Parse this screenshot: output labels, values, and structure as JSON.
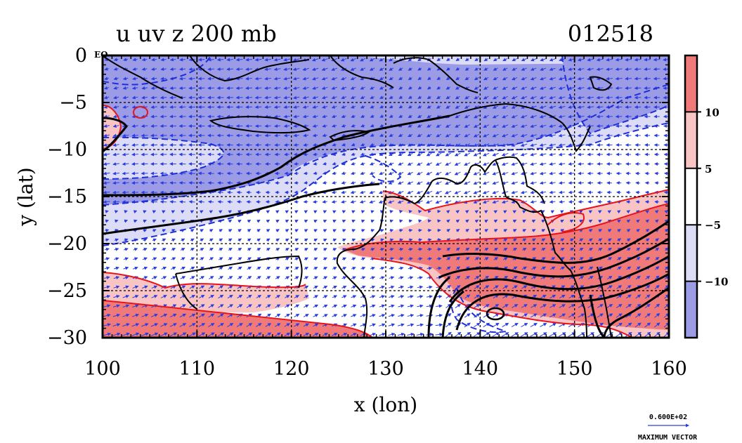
{
  "chart_data": {
    "type": "heatmap",
    "title": "u uv z 200 mb",
    "date_label": "012518",
    "xlabel": "x (lon)",
    "ylabel": "y (lat)",
    "xlim": [
      100,
      160
    ],
    "ylim": [
      -30,
      0
    ],
    "x_ticks": [
      100,
      110,
      120,
      130,
      140,
      150,
      160
    ],
    "y_ticks": [
      0,
      -5,
      -10,
      -15,
      -20,
      -25,
      -30
    ],
    "y_tick_labels": [
      "0",
      "−5",
      "−10",
      "−15",
      "−20",
      "−25",
      "−30"
    ],
    "eq_label": "EQ",
    "grid": true,
    "colorbar": {
      "ticks": [
        "10",
        "5",
        "−5",
        "−10"
      ],
      "bands": [
        {
          "lo": 10,
          "hi": 15,
          "color": "#f07a7a"
        },
        {
          "lo": 5,
          "hi": 10,
          "color": "#f8c4c4"
        },
        {
          "lo": -5,
          "hi": 5,
          "color": "#ffffff"
        },
        {
          "lo": -10,
          "hi": -5,
          "color": "#dcdcf6"
        },
        {
          "lo": -15,
          "hi": -10,
          "color": "#9b9be6"
        }
      ]
    },
    "vector_legend": {
      "value": "0.600E+02",
      "label": "MAXIMUM VECTOR"
    },
    "colors": {
      "strong_pos": "#f07a7a",
      "weak_pos": "#f8c4c4",
      "weak_neg": "#dcdcf6",
      "strong_neg": "#9b9be6",
      "pos_contour": "#e8141c",
      "neg_contour": "#1f2fd8",
      "vector": "#2a3ee0",
      "z_contour": "#000000"
    }
  }
}
